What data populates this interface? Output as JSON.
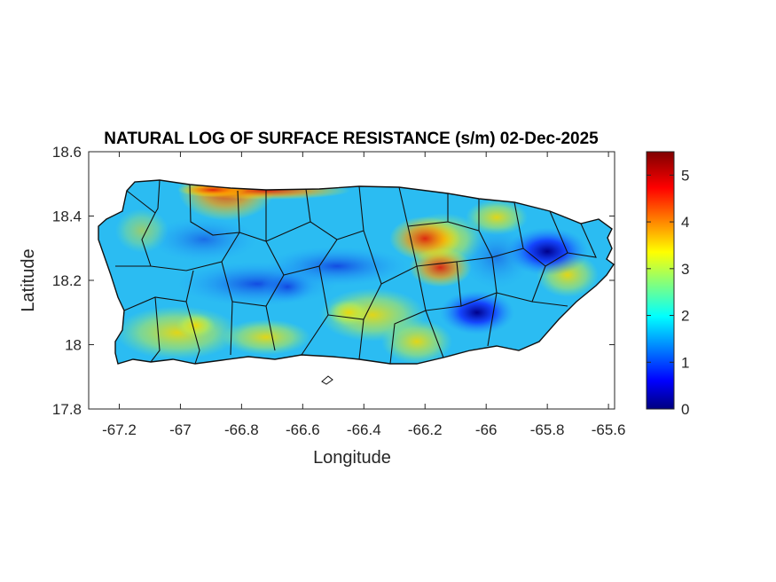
{
  "title": "NATURAL LOG OF SURFACE RESISTANCE (s/m) 02-Dec-2025",
  "xlabel": "Longitude",
  "ylabel": "Latitude",
  "x_ticks": [
    "-67.2",
    "-67",
    "-66.8",
    "-66.6",
    "-66.4",
    "-66.2",
    "-66",
    "-65.8",
    "-65.6"
  ],
  "y_ticks": [
    "18.6",
    "18.4",
    "18.2",
    "18"
  ],
  "y_tick_bottom": "17.8",
  "colorbar": {
    "min": 0,
    "max": 5.5,
    "ticks": [
      "5",
      "4",
      "3",
      "2",
      "1",
      "0"
    ],
    "colormap": "jet"
  },
  "chart_data": {
    "type": "heatmap",
    "title": "NATURAL LOG OF SURFACE RESISTANCE (s/m) 02-Dec-2025",
    "xlabel": "Longitude",
    "ylabel": "Latitude",
    "xlim": [
      -67.3,
      -65.58
    ],
    "ylim": [
      17.8,
      18.6
    ],
    "clim": [
      0,
      5.5
    ],
    "colormap": "jet",
    "grid": false,
    "hotspots": [
      {
        "lon": -66.85,
        "lat": 18.48,
        "value": 5.2
      },
      {
        "lon": -66.2,
        "lat": 18.33,
        "value": 4.3
      },
      {
        "lon": -66.15,
        "lat": 18.24,
        "value": 4.0
      },
      {
        "lon": -66.45,
        "lat": 18.1,
        "value": 3.3
      },
      {
        "lon": -66.95,
        "lat": 18.06,
        "value": 3.2
      }
    ],
    "coldspots": [
      {
        "lon": -65.8,
        "lat": 18.29,
        "value": 0.4
      },
      {
        "lon": -66.03,
        "lat": 18.1,
        "value": 0.6
      },
      {
        "lon": -66.65,
        "lat": 18.18,
        "value": 1.2
      }
    ],
    "background_value": 2.0
  }
}
